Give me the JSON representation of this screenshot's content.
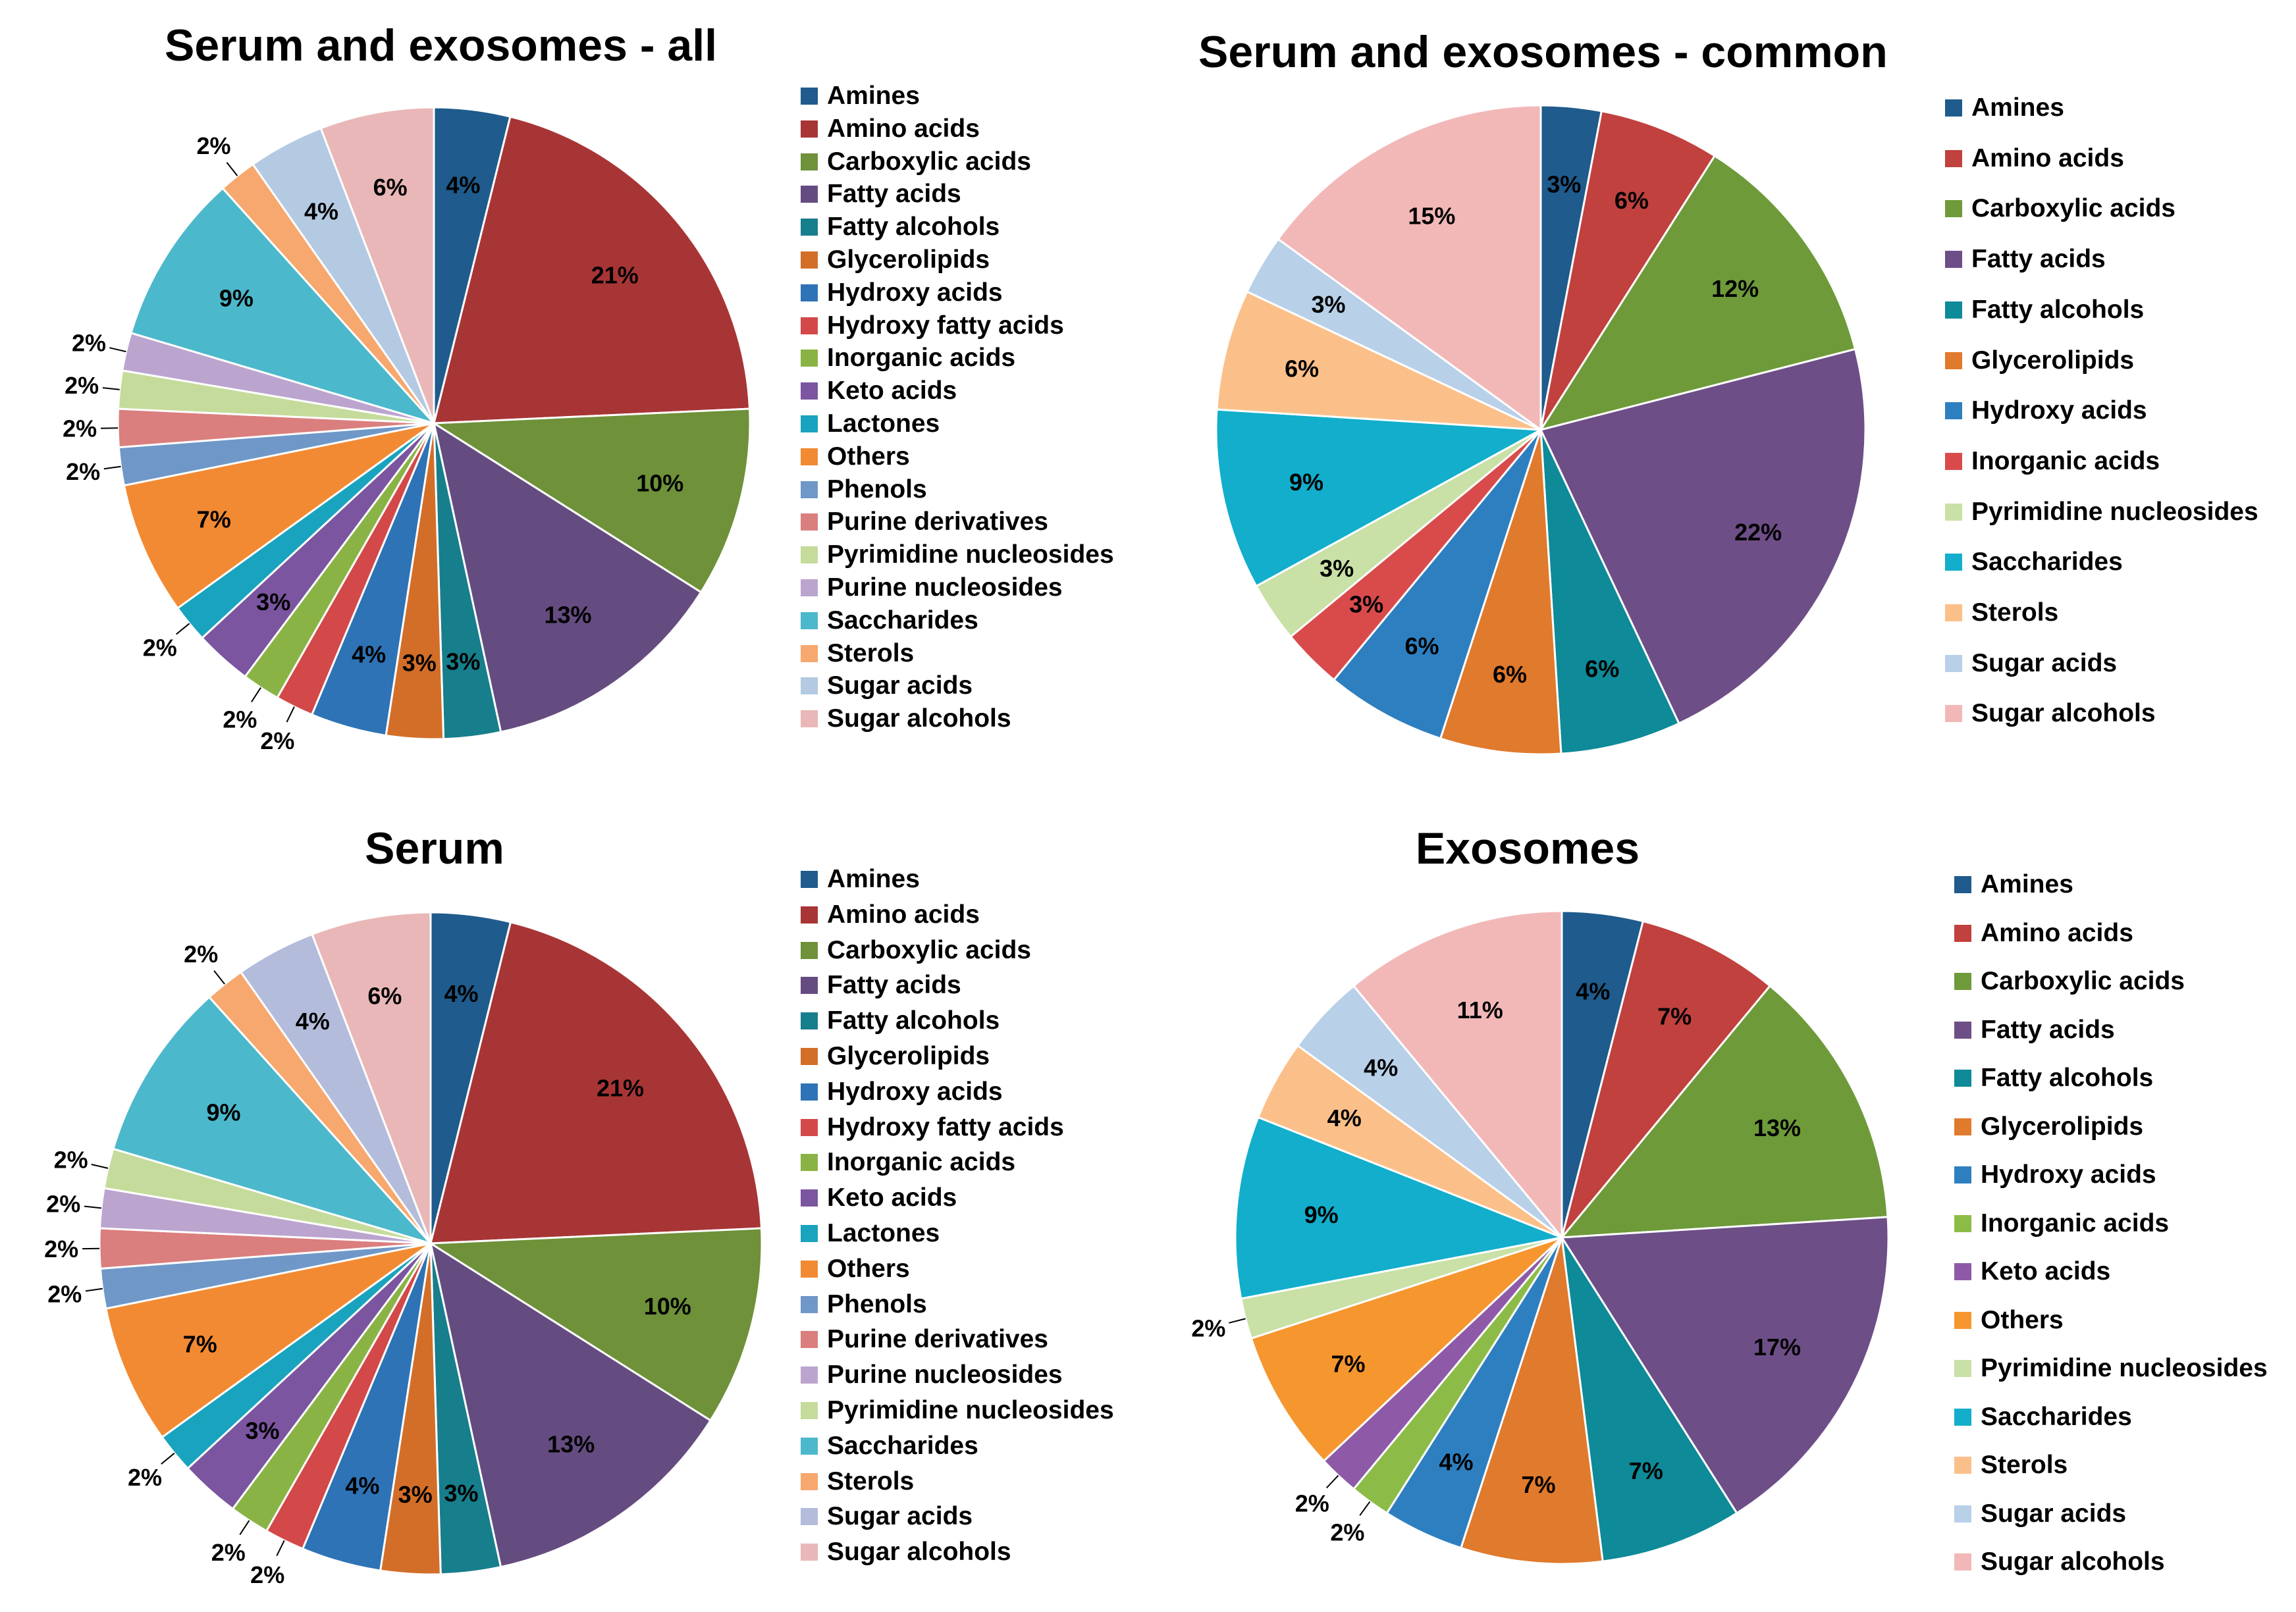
{
  "chart_data": [
    {
      "type": "pie",
      "title": "Serum and exosomes - all",
      "categories": [
        "Amines",
        "Amino acids",
        "Carboxylic acids",
        "Fatty acids",
        "Fatty alcohols",
        "Glycerolipids",
        "Hydroxy acids",
        "Hydroxy fatty acids",
        "Inorganic acids",
        "Keto acids",
        "Lactones",
        "Others",
        "Phenols",
        "Purine derivatives",
        "Pyrimidine nucleosides",
        "Purine nucleosides",
        "Saccharides",
        "Sterols",
        "Sugar acids",
        "Sugar alcohols"
      ],
      "values": [
        4,
        21,
        10,
        13,
        3,
        3,
        4,
        2,
        2,
        3,
        2,
        7,
        2,
        2,
        2,
        2,
        9,
        2,
        4,
        6
      ],
      "labels": [
        "4%",
        "21%",
        "10%",
        "13%",
        "3%",
        "3%",
        "4%",
        "2%",
        "2%",
        "3%",
        "2%",
        "7%",
        "2%",
        "2%",
        "2%",
        "2%",
        "9%",
        "2%",
        "4%",
        "6%"
      ],
      "colors": [
        "#1F5B8C",
        "#A83535",
        "#6E9139",
        "#654C80",
        "#177E8C",
        "#D36E29",
        "#2E73B5",
        "#D34848",
        "#8AB346",
        "#7B55A0",
        "#1AA3BE",
        "#F28A33",
        "#6F98C8",
        "#DB7E7E",
        "#C5DB9B",
        "#BBA5CF",
        "#4CB8CB",
        "#F6A86E",
        "#B4CAE2",
        "#E9B7B7"
      ],
      "legend": [
        "Amines",
        "Amino acids",
        "Carboxylic acids",
        "Fatty acids",
        "Fatty alcohols",
        "Glycerolipids",
        "Hydroxy acids",
        "Hydroxy fatty acids",
        "Inorganic acids",
        "Keto acids",
        "Lactones",
        "Others",
        "Phenols",
        "Purine derivatives",
        "Pyrimidine nucleosides",
        "Purine nucleosides",
        "Saccharides",
        "Sterols",
        "Sugar acids",
        "Sugar alcohols"
      ],
      "legend_colors": [
        "#1F5B8C",
        "#A83535",
        "#6E9139",
        "#654C80",
        "#177E8C",
        "#D36E29",
        "#2E73B5",
        "#D34848",
        "#8AB346",
        "#7B55A0",
        "#1AA3BE",
        "#F28A33",
        "#6F98C8",
        "#DB7E7E",
        "#C5DB9B",
        "#BBA5CF",
        "#4CB8CB",
        "#F6A86E",
        "#B4CAE2",
        "#E9B7B7"
      ],
      "legend_position": "right"
    },
    {
      "type": "pie",
      "title": "Serum and exosomes - common",
      "categories": [
        "Amines",
        "Amino acids",
        "Carboxylic acids",
        "Fatty acids",
        "Fatty alcohols",
        "Glycerolipids",
        "Hydroxy acids",
        "Inorganic acids",
        "Pyrimidine nucleosides",
        "Saccharides",
        "Sterols",
        "Sugar acids",
        "Sugar alcohols"
      ],
      "values": [
        3,
        6,
        12,
        22,
        6,
        6,
        6,
        3,
        3,
        9,
        6,
        3,
        15
      ],
      "labels": [
        "3%",
        "6%",
        "12%",
        "22%",
        "6%",
        "6%",
        "6%",
        "3%",
        "3%",
        "9%",
        "6%",
        "3%",
        "15%"
      ],
      "colors": [
        "#1F5B8C",
        "#C0413E",
        "#6E9A3A",
        "#6E4E87",
        "#0E8A98",
        "#E07A2C",
        "#2E7FC0",
        "#D94B4B",
        "#C9E0A6",
        "#12AECB",
        "#FBC08A",
        "#B8D0E8",
        "#F2B8B8"
      ],
      "legend": [
        "Amines",
        "Amino acids",
        "Carboxylic acids",
        "Fatty acids",
        "Fatty alcohols",
        "Glycerolipids",
        "Hydroxy acids",
        "Inorganic acids",
        "Pyrimidine nucleosides",
        "Saccharides",
        "Sterols",
        "Sugar acids",
        "Sugar alcohols"
      ],
      "legend_colors": [
        "#1F5B8C",
        "#C0413E",
        "#6E9A3A",
        "#6E4E87",
        "#0E8A98",
        "#E07A2C",
        "#2E7FC0",
        "#D94B4B",
        "#C9E0A6",
        "#12AECB",
        "#FBC08A",
        "#B8D0E8",
        "#F2B8B8"
      ],
      "legend_position": "right"
    },
    {
      "type": "pie",
      "title": "Serum",
      "categories": [
        "Amines",
        "Amino acids",
        "Carboxylic acids",
        "Fatty acids",
        "Fatty alcohols",
        "Glycerolipids",
        "Hydroxy acids",
        "Hydroxy fatty acids",
        "Inorganic acids",
        "Keto acids",
        "Lactones",
        "Others",
        "Phenols",
        "Purine derivatives",
        "Purine nucleosides",
        "Pyrimidine nucleosides",
        "Saccharides",
        "Sterols",
        "Sugar acids",
        "Sugar alcohols"
      ],
      "values": [
        4,
        21,
        10,
        13,
        3,
        3,
        4,
        2,
        2,
        3,
        2,
        7,
        2,
        2,
        2,
        2,
        9,
        2,
        4,
        6
      ],
      "labels": [
        "4%",
        "21%",
        "10%",
        "13%",
        "3%",
        "3%",
        "4%",
        "2%",
        "2%",
        "3%",
        "2%",
        "7%",
        "2%",
        "2%",
        "2%",
        "2%",
        "9%",
        "2%",
        "4%",
        "6%"
      ],
      "colors": [
        "#1F5B8C",
        "#A83535",
        "#6E9139",
        "#654C80",
        "#177E8C",
        "#D36E29",
        "#2E73B5",
        "#D34848",
        "#8AB346",
        "#7B55A0",
        "#1AA3BE",
        "#F28A33",
        "#6F98C8",
        "#DB7E7E",
        "#BBA5CF",
        "#C5DB9B",
        "#4CB8CB",
        "#F6A86E",
        "#B4BCDB",
        "#E9B7B7"
      ],
      "legend": [
        "Amines",
        "Amino acids",
        "Carboxylic acids",
        "Fatty acids",
        "Fatty alcohols",
        "Glycerolipids",
        "Hydroxy acids",
        "Hydroxy fatty acids",
        "Inorganic acids",
        "Keto acids",
        "Lactones",
        "Others",
        "Phenols",
        "Purine derivatives",
        "Purine nucleosides",
        "Pyrimidine nucleosides",
        "Saccharides",
        "Sterols",
        "Sugar acids",
        "Sugar alcohols"
      ],
      "legend_colors": [
        "#1F5B8C",
        "#A83535",
        "#6E9139",
        "#654C80",
        "#177E8C",
        "#D36E29",
        "#2E73B5",
        "#D34848",
        "#8AB346",
        "#7B55A0",
        "#1AA3BE",
        "#F28A33",
        "#6F98C8",
        "#DB7E7E",
        "#BBA5CF",
        "#C5DB9B",
        "#4CB8CB",
        "#F6A86E",
        "#B4BCDB",
        "#E9B7B7"
      ],
      "legend_position": "right"
    },
    {
      "type": "pie",
      "title": "Exosomes",
      "categories": [
        "Amines",
        "Amino acids",
        "Carboxylic acids",
        "Fatty acids",
        "Fatty alcohols",
        "Glycerolipids",
        "Hydroxy acids",
        "Inorganic acids",
        "Keto acids",
        "Others",
        "Pyrimidine nucleosides",
        "Saccharides",
        "Sterols",
        "Sugar acids",
        "Sugar alcohols"
      ],
      "values": [
        4,
        7,
        13,
        17,
        7,
        7,
        4,
        2,
        2,
        7,
        2,
        9,
        4,
        4,
        11
      ],
      "labels": [
        "4%",
        "7%",
        "13%",
        "17%",
        "7%",
        "7%",
        "4%",
        "2%",
        "2%",
        "7%",
        "2%",
        "9%",
        "4%",
        "4%",
        "11%"
      ],
      "colors": [
        "#1F5B8C",
        "#C0413E",
        "#6E9A3A",
        "#6E4E87",
        "#0E8A98",
        "#E07A2C",
        "#2E7FC0",
        "#8DBB48",
        "#8E5AA8",
        "#F6962F",
        "#C9E0A6",
        "#12AECB",
        "#FBC08A",
        "#B8D0E8",
        "#F2B8B8"
      ],
      "legend": [
        "Amines",
        "Amino acids",
        "Carboxylic acids",
        "Fatty acids",
        "Fatty alcohols",
        "Glycerolipids",
        "Hydroxy acids",
        "Inorganic acids",
        "Keto acids",
        "Others",
        "Pyrimidine nucleosides",
        "Saccharides",
        "Sterols",
        "Sugar acids",
        "Sugar alcohols"
      ],
      "legend_colors": [
        "#1F5B8C",
        "#C0413E",
        "#6E9A3A",
        "#6E4E87",
        "#0E8A98",
        "#E07A2C",
        "#2E7FC0",
        "#8DBB48",
        "#8E5AA8",
        "#F6962F",
        "#C9E0A6",
        "#12AECB",
        "#FBC08A",
        "#B8D0E8",
        "#F2B8B8"
      ],
      "legend_position": "right"
    }
  ]
}
